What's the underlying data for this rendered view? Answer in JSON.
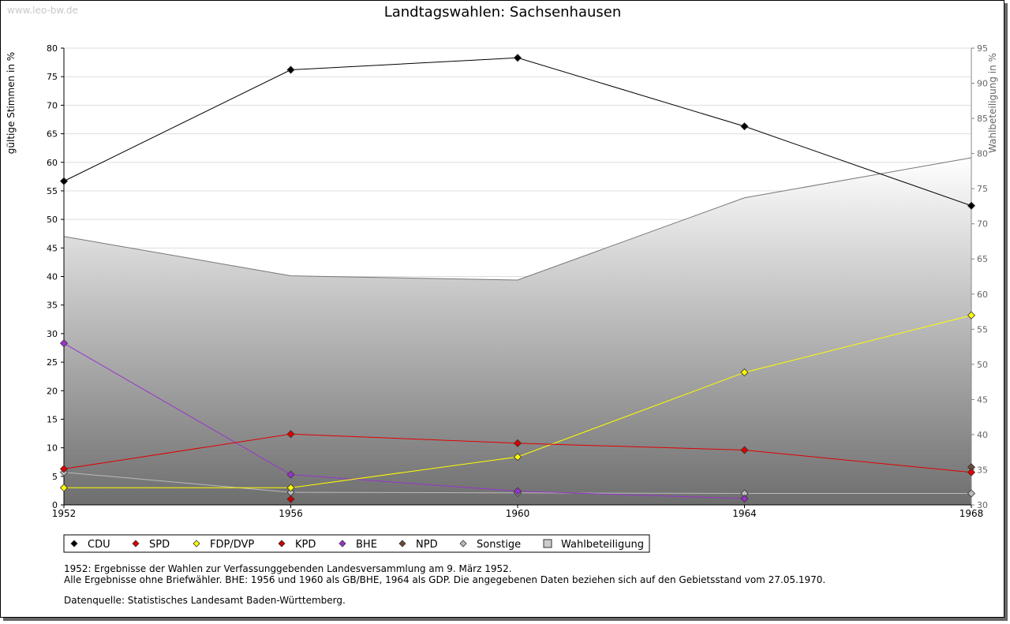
{
  "watermark": "www.leo-bw.de",
  "notes": [
    "1952: Ergebnisse der Wahlen zur Verfassunggebenden Landesversammlung am 9. März 1952.",
    "Alle Ergebnisse ohne Briefwähler. BHE: 1956 und 1960 als GB/BHE, 1964 als GDP. Die angegebenen Daten beziehen sich auf den Gebietsstand vom 27.05.1970.",
    "Datenquelle: Statistisches Landesamt Baden-Württemberg."
  ],
  "chart_data": {
    "type": "line",
    "title": "Landtagswahlen: Sachsenhausen",
    "ylabel": "gültige Stimmen in %",
    "y2label": "Wahlbeteiligung in %",
    "ylim": [
      0,
      80
    ],
    "y2lim": [
      30,
      95
    ],
    "yticks": [
      "0",
      "5",
      "10",
      "15",
      "20",
      "25",
      "30",
      "35",
      "40",
      "45",
      "50",
      "55",
      "60",
      "65",
      "70",
      "75",
      "80"
    ],
    "y2ticks": [
      "30",
      "35",
      "40",
      "45",
      "50",
      "55",
      "60",
      "65",
      "70",
      "75",
      "80",
      "85",
      "90",
      "95"
    ],
    "x": [
      "1952",
      "1956",
      "1960",
      "1964",
      "1968"
    ],
    "grid": true,
    "legend_position": "bottom-left",
    "series": [
      {
        "name": "CDU",
        "color": "#000000",
        "values": [
          56.7,
          76.2,
          78.3,
          66.3,
          52.4
        ]
      },
      {
        "name": "SPD",
        "color": "#e00000",
        "values": [
          6.3,
          12.4,
          10.8,
          9.6,
          5.7
        ]
      },
      {
        "name": "FDP/DVP",
        "color": "#ffff00",
        "values": [
          3.0,
          3.0,
          8.4,
          23.2,
          33.2
        ]
      },
      {
        "name": "KPD",
        "color": "#c80000",
        "values": [
          null,
          1.0,
          null,
          null,
          null
        ]
      },
      {
        "name": "BHE",
        "color": "#9933cc",
        "values": [
          28.3,
          5.3,
          2.4,
          1.1,
          null
        ]
      },
      {
        "name": "NPD",
        "color": "#6b4a3a",
        "values": [
          null,
          null,
          null,
          null,
          6.6
        ]
      },
      {
        "name": "Sonstige",
        "color": "#bbbbbb",
        "values": [
          5.7,
          2.2,
          2.1,
          2.0,
          2.0
        ]
      }
    ],
    "turnout": {
      "name": "Wahlbeteiligung",
      "values": [
        68.2,
        62.6,
        62.0,
        73.7,
        79.4
      ]
    }
  }
}
